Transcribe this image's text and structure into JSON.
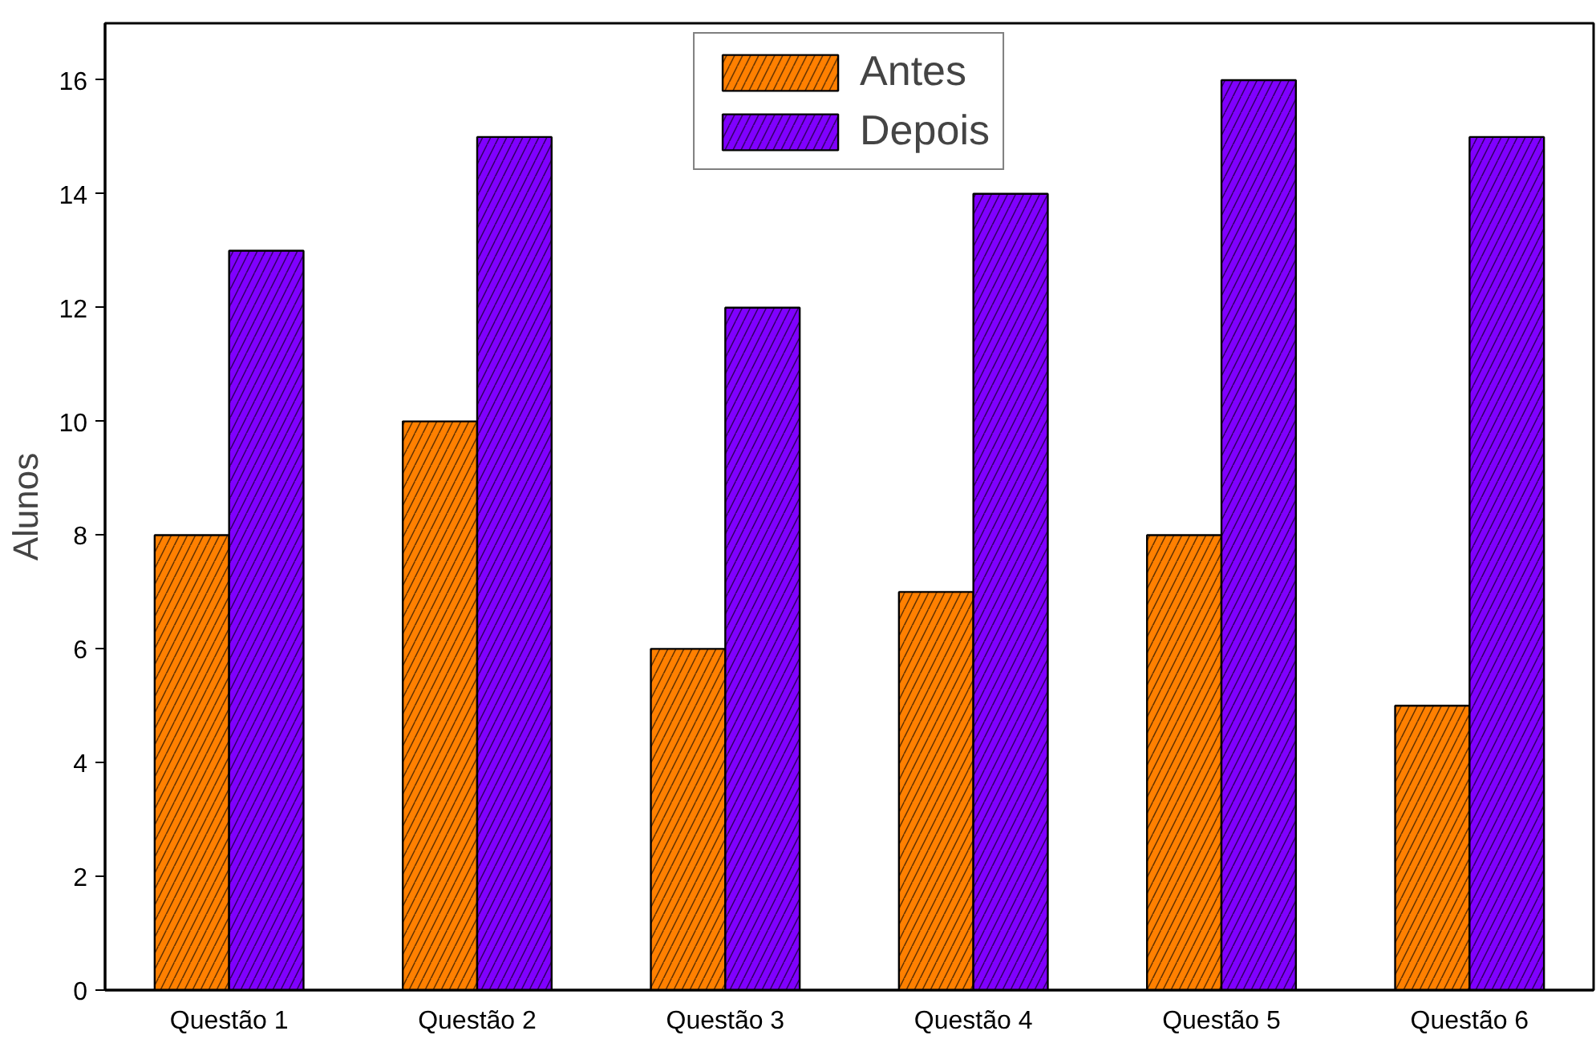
{
  "chart_data": {
    "type": "bar",
    "ylabel": "Alunos",
    "categories": [
      "Questão 1",
      "Questão 2",
      "Questão 3",
      "Questão 4",
      "Questão 5",
      "Questão 6"
    ],
    "series": [
      {
        "name": "Antes",
        "color": "#ff8000",
        "values": [
          8,
          10,
          6,
          7,
          8,
          5
        ]
      },
      {
        "name": "Depois",
        "color": "#8000ff",
        "values": [
          13,
          15,
          12,
          14,
          16,
          15
        ]
      }
    ],
    "ylim": [
      0,
      17
    ],
    "yticks": [
      0,
      2,
      4,
      6,
      8,
      10,
      12,
      14,
      16
    ],
    "grid": false,
    "legend": "top"
  }
}
